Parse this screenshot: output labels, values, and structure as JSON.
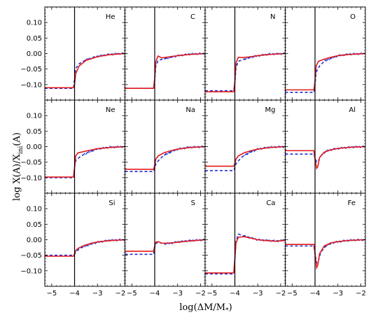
{
  "figure": {
    "ylabel": "log X(A)/X_ini(A)",
    "xlabel": "log(ΔM/M*)",
    "ylabel_main": "log X(A)/X",
    "ylabel_sub": "ini",
    "ylabel_tail": "(A)",
    "xlabel_main": "log(ΔM/M",
    "xlabel_sub": "*",
    "xlabel_tail": ")"
  },
  "chart_data": {
    "type": "line",
    "layout": "grid 3 rows x 4 columns, shared axes",
    "xlim": [
      -5.3,
      -1.8
    ],
    "ylim": [
      -0.15,
      0.15
    ],
    "x_ticks": [
      -5,
      -4,
      -3,
      -2
    ],
    "x_tick_labels": [
      "−5",
      "−4",
      "−3",
      "−2"
    ],
    "y_ticks": [
      -0.1,
      -0.05,
      0.0,
      0.05,
      0.1
    ],
    "y_tick_labels": [
      "−0.10",
      "−0.05",
      "0.00",
      "0.05",
      "0.10"
    ],
    "vertical_line_x": -4.0,
    "panels": [
      {
        "element": "He",
        "red": [
          [
            -5.3,
            -0.11
          ],
          [
            -4.05,
            -0.11
          ],
          [
            -4.0,
            -0.1
          ],
          [
            -3.95,
            -0.065
          ],
          [
            -3.8,
            -0.04
          ],
          [
            -3.5,
            -0.022
          ],
          [
            -3.0,
            -0.01
          ],
          [
            -2.5,
            -0.004
          ],
          [
            -2.0,
            -0.001
          ],
          [
            -1.8,
            0.0
          ]
        ],
        "blue": [
          [
            -5.3,
            -0.112
          ],
          [
            -4.05,
            -0.112
          ],
          [
            -4.0,
            -0.08
          ],
          [
            -3.95,
            -0.048
          ],
          [
            -3.8,
            -0.033
          ],
          [
            -3.5,
            -0.02
          ],
          [
            -3.0,
            -0.009
          ],
          [
            -2.5,
            -0.003
          ],
          [
            -2.0,
            0.0
          ],
          [
            -1.8,
            0.0
          ]
        ]
      },
      {
        "element": "C",
        "red": [
          [
            -5.3,
            -0.112
          ],
          [
            -4.05,
            -0.112
          ],
          [
            -4.0,
            -0.08
          ],
          [
            -3.95,
            -0.025
          ],
          [
            -3.85,
            -0.008
          ],
          [
            -3.7,
            -0.014
          ],
          [
            -3.4,
            -0.011
          ],
          [
            -3.0,
            -0.007
          ],
          [
            -2.5,
            -0.003
          ],
          [
            -1.8,
            0.0
          ]
        ],
        "blue": [
          [
            -5.3,
            -0.112
          ],
          [
            -4.05,
            -0.112
          ],
          [
            -4.0,
            -0.085
          ],
          [
            -3.95,
            -0.04
          ],
          [
            -3.85,
            -0.022
          ],
          [
            -3.6,
            -0.017
          ],
          [
            -3.3,
            -0.012
          ],
          [
            -3.0,
            -0.007
          ],
          [
            -2.5,
            -0.002
          ],
          [
            -1.8,
            0.0
          ]
        ]
      },
      {
        "element": "N",
        "red": [
          [
            -5.3,
            -0.123
          ],
          [
            -4.05,
            -0.123
          ],
          [
            -4.0,
            -0.09
          ],
          [
            -3.95,
            -0.03
          ],
          [
            -3.85,
            -0.012
          ],
          [
            -3.7,
            -0.013
          ],
          [
            -3.4,
            -0.011
          ],
          [
            -3.0,
            -0.007
          ],
          [
            -2.5,
            -0.003
          ],
          [
            -1.8,
            0.0
          ]
        ],
        "blue": [
          [
            -5.3,
            -0.12
          ],
          [
            -4.05,
            -0.12
          ],
          [
            -4.0,
            -0.095
          ],
          [
            -3.95,
            -0.045
          ],
          [
            -3.85,
            -0.025
          ],
          [
            -3.6,
            -0.018
          ],
          [
            -3.3,
            -0.012
          ],
          [
            -3.0,
            -0.007
          ],
          [
            -2.5,
            -0.002
          ],
          [
            -1.8,
            0.0
          ]
        ]
      },
      {
        "element": "O",
        "red": [
          [
            -5.3,
            -0.117
          ],
          [
            -4.05,
            -0.117
          ],
          [
            -4.0,
            -0.09
          ],
          [
            -3.95,
            -0.04
          ],
          [
            -3.85,
            -0.025
          ],
          [
            -3.6,
            -0.018
          ],
          [
            -3.3,
            -0.012
          ],
          [
            -3.0,
            -0.007
          ],
          [
            -2.5,
            -0.003
          ],
          [
            -1.8,
            0.0
          ]
        ],
        "blue": [
          [
            -5.3,
            -0.125
          ],
          [
            -4.05,
            -0.125
          ],
          [
            -4.0,
            -0.1
          ],
          [
            -3.95,
            -0.06
          ],
          [
            -3.8,
            -0.04
          ],
          [
            -3.6,
            -0.025
          ],
          [
            -3.3,
            -0.015
          ],
          [
            -3.0,
            -0.007
          ],
          [
            -2.5,
            -0.002
          ],
          [
            -1.8,
            0.0
          ]
        ]
      },
      {
        "element": "Ne",
        "red": [
          [
            -5.3,
            -0.098
          ],
          [
            -4.05,
            -0.098
          ],
          [
            -4.0,
            -0.07
          ],
          [
            -3.95,
            -0.03
          ],
          [
            -3.85,
            -0.02
          ],
          [
            -3.6,
            -0.016
          ],
          [
            -3.3,
            -0.011
          ],
          [
            -3.0,
            -0.007
          ],
          [
            -2.5,
            -0.003
          ],
          [
            -1.8,
            0.0
          ]
        ],
        "blue": [
          [
            -5.3,
            -0.1
          ],
          [
            -4.05,
            -0.1
          ],
          [
            -4.0,
            -0.065
          ],
          [
            -3.95,
            -0.045
          ],
          [
            -3.8,
            -0.035
          ],
          [
            -3.6,
            -0.025
          ],
          [
            -3.3,
            -0.015
          ],
          [
            -3.0,
            -0.007
          ],
          [
            -2.5,
            -0.002
          ],
          [
            -1.8,
            0.0
          ]
        ]
      },
      {
        "element": "Na",
        "red": [
          [
            -5.3,
            -0.073
          ],
          [
            -4.05,
            -0.073
          ],
          [
            -4.0,
            -0.06
          ],
          [
            -3.95,
            -0.04
          ],
          [
            -3.85,
            -0.03
          ],
          [
            -3.6,
            -0.02
          ],
          [
            -3.3,
            -0.013
          ],
          [
            -3.0,
            -0.008
          ],
          [
            -2.5,
            -0.003
          ],
          [
            -1.8,
            0.0
          ]
        ],
        "blue": [
          [
            -5.3,
            -0.08
          ],
          [
            -4.05,
            -0.08
          ],
          [
            -4.0,
            -0.07
          ],
          [
            -3.95,
            -0.055
          ],
          [
            -3.8,
            -0.042
          ],
          [
            -3.6,
            -0.028
          ],
          [
            -3.3,
            -0.017
          ],
          [
            -3.0,
            -0.008
          ],
          [
            -2.5,
            -0.002
          ],
          [
            -1.8,
            0.0
          ]
        ]
      },
      {
        "element": "Mg",
        "red": [
          [
            -5.3,
            -0.063
          ],
          [
            -4.05,
            -0.063
          ],
          [
            -4.0,
            -0.055
          ],
          [
            -3.95,
            -0.04
          ],
          [
            -3.85,
            -0.03
          ],
          [
            -3.6,
            -0.02
          ],
          [
            -3.3,
            -0.013
          ],
          [
            -3.0,
            -0.008
          ],
          [
            -2.5,
            -0.003
          ],
          [
            -1.8,
            0.0
          ]
        ],
        "blue": [
          [
            -5.3,
            -0.077
          ],
          [
            -4.05,
            -0.077
          ],
          [
            -4.0,
            -0.068
          ],
          [
            -3.95,
            -0.055
          ],
          [
            -3.8,
            -0.042
          ],
          [
            -3.6,
            -0.028
          ],
          [
            -3.3,
            -0.017
          ],
          [
            -3.0,
            -0.008
          ],
          [
            -2.5,
            -0.002
          ],
          [
            -1.8,
            0.0
          ]
        ]
      },
      {
        "element": "Al",
        "red": [
          [
            -5.3,
            -0.013
          ],
          [
            -4.05,
            -0.013
          ],
          [
            -4.0,
            -0.04
          ],
          [
            -3.93,
            -0.07
          ],
          [
            -3.88,
            -0.065
          ],
          [
            -3.8,
            -0.035
          ],
          [
            -3.6,
            -0.018
          ],
          [
            -3.3,
            -0.01
          ],
          [
            -3.0,
            -0.006
          ],
          [
            -2.5,
            -0.002
          ],
          [
            -1.8,
            0.0
          ]
        ],
        "blue": [
          [
            -5.3,
            -0.024
          ],
          [
            -4.05,
            -0.024
          ],
          [
            -4.0,
            -0.035
          ],
          [
            -3.93,
            -0.05
          ],
          [
            -3.85,
            -0.045
          ],
          [
            -3.7,
            -0.025
          ],
          [
            -3.5,
            -0.014
          ],
          [
            -3.2,
            -0.008
          ],
          [
            -2.8,
            -0.004
          ],
          [
            -2.3,
            -0.001
          ],
          [
            -1.8,
            0.0
          ]
        ]
      },
      {
        "element": "Si",
        "red": [
          [
            -5.3,
            -0.053
          ],
          [
            -4.05,
            -0.053
          ],
          [
            -4.0,
            -0.045
          ],
          [
            -3.95,
            -0.035
          ],
          [
            -3.85,
            -0.028
          ],
          [
            -3.6,
            -0.019
          ],
          [
            -3.3,
            -0.012
          ],
          [
            -3.0,
            -0.007
          ],
          [
            -2.5,
            -0.003
          ],
          [
            -1.8,
            0.0
          ]
        ],
        "blue": [
          [
            -5.3,
            -0.05
          ],
          [
            -4.05,
            -0.05
          ],
          [
            -4.0,
            -0.047
          ],
          [
            -3.95,
            -0.04
          ],
          [
            -3.8,
            -0.03
          ],
          [
            -3.6,
            -0.022
          ],
          [
            -3.3,
            -0.014
          ],
          [
            -3.0,
            -0.008
          ],
          [
            -2.5,
            -0.002
          ],
          [
            -1.8,
            0.0
          ]
        ]
      },
      {
        "element": "S",
        "red": [
          [
            -5.3,
            -0.037
          ],
          [
            -4.05,
            -0.037
          ],
          [
            -4.0,
            -0.02
          ],
          [
            -3.95,
            -0.008
          ],
          [
            -3.85,
            -0.006
          ],
          [
            -3.7,
            -0.011
          ],
          [
            -3.4,
            -0.011
          ],
          [
            -3.0,
            -0.008
          ],
          [
            -2.5,
            -0.004
          ],
          [
            -1.8,
            0.0
          ]
        ],
        "blue": [
          [
            -5.3,
            -0.047
          ],
          [
            -4.05,
            -0.047
          ],
          [
            -4.0,
            -0.025
          ],
          [
            -3.95,
            -0.012
          ],
          [
            -3.85,
            -0.008
          ],
          [
            -3.6,
            -0.013
          ],
          [
            -3.3,
            -0.011
          ],
          [
            -3.0,
            -0.007
          ],
          [
            -2.5,
            -0.003
          ],
          [
            -1.8,
            0.0
          ]
        ]
      },
      {
        "element": "Ca",
        "red": [
          [
            -5.3,
            -0.107
          ],
          [
            -4.05,
            -0.107
          ],
          [
            -4.0,
            -0.06
          ],
          [
            -3.95,
            -0.01
          ],
          [
            -3.85,
            0.008
          ],
          [
            -3.6,
            0.01
          ],
          [
            -3.3,
            0.005
          ],
          [
            -3.0,
            0.0
          ],
          [
            -2.6,
            -0.003
          ],
          [
            -2.2,
            -0.005
          ],
          [
            -1.8,
            -0.002
          ]
        ],
        "blue": [
          [
            -5.3,
            -0.11
          ],
          [
            -4.05,
            -0.11
          ],
          [
            -4.0,
            -0.065
          ],
          [
            -3.95,
            -0.005
          ],
          [
            -3.85,
            0.018
          ],
          [
            -3.6,
            0.012
          ],
          [
            -3.3,
            0.006
          ],
          [
            -3.0,
            0.0
          ],
          [
            -2.6,
            -0.002
          ],
          [
            -2.2,
            -0.004
          ],
          [
            -1.8,
            -0.002
          ]
        ]
      },
      {
        "element": "Fe",
        "red": [
          [
            -5.3,
            -0.015
          ],
          [
            -4.05,
            -0.015
          ],
          [
            -4.0,
            -0.045
          ],
          [
            -3.93,
            -0.09
          ],
          [
            -3.88,
            -0.082
          ],
          [
            -3.8,
            -0.045
          ],
          [
            -3.6,
            -0.02
          ],
          [
            -3.3,
            -0.01
          ],
          [
            -3.0,
            -0.006
          ],
          [
            -2.5,
            -0.002
          ],
          [
            -1.8,
            0.0
          ]
        ],
        "blue": [
          [
            -5.3,
            -0.02
          ],
          [
            -4.05,
            -0.02
          ],
          [
            -4.0,
            -0.045
          ],
          [
            -3.93,
            -0.075
          ],
          [
            -3.86,
            -0.07
          ],
          [
            -3.75,
            -0.04
          ],
          [
            -3.5,
            -0.018
          ],
          [
            -3.2,
            -0.009
          ],
          [
            -2.8,
            -0.004
          ],
          [
            -2.3,
            -0.001
          ],
          [
            -1.8,
            0.0
          ]
        ]
      }
    ],
    "series": [
      {
        "style": "solid red line"
      },
      {
        "style": "dashed blue line"
      }
    ],
    "colors": {
      "red": "#e31a1c",
      "blue": "#1f2fd1"
    }
  }
}
